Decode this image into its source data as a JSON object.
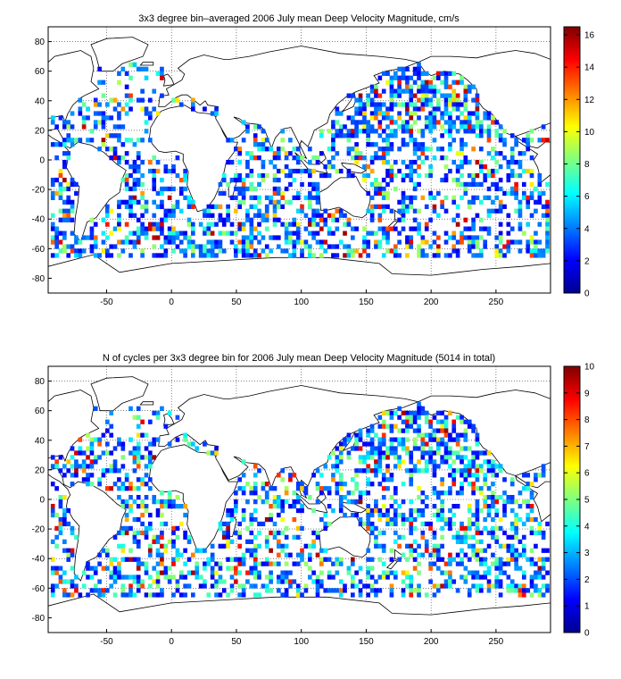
{
  "chart_data": [
    {
      "type": "heatmap",
      "title": "3x3 degree bin–averaged 2006 July mean Deep Velocity Magnitude, cm/s",
      "xlabel": "",
      "ylabel": "",
      "xlim": [
        -95,
        292
      ],
      "ylim": [
        -90,
        90
      ],
      "xticks": [
        "-50",
        "0",
        "50",
        "100",
        "150",
        "200",
        "250"
      ],
      "yticks": [
        "80",
        "60",
        "40",
        "20",
        "0",
        "-20",
        "-40",
        "-60",
        "-80"
      ],
      "grid": true,
      "colorbar": {
        "range": [
          0,
          16.5
        ],
        "ticks": [
          "0",
          "2",
          "4",
          "6",
          "8",
          "10",
          "12",
          "14",
          "16"
        ],
        "colormap": "jet"
      },
      "bin_size_deg": 3,
      "value_mix": {
        "low_fraction": 0.63,
        "mid_fraction": 0.25,
        "high_fraction": 0.12
      },
      "colors": {
        "low": "#0000d8",
        "mid": "#00e0ff",
        "high": "#a00000"
      }
    },
    {
      "type": "heatmap",
      "title": "N of cycles per 3x3 degree bin for 2006 July mean Deep Velocity Magnitude (5014 in total)",
      "xlabel": "",
      "ylabel": "",
      "xlim": [
        -95,
        292
      ],
      "ylim": [
        -90,
        90
      ],
      "xticks": [
        "-50",
        "0",
        "50",
        "100",
        "150",
        "200",
        "250"
      ],
      "yticks": [
        "80",
        "60",
        "40",
        "20",
        "0",
        "-20",
        "-40",
        "-60",
        "-80"
      ],
      "grid": true,
      "total_cycles": 5014,
      "colorbar": {
        "range": [
          0,
          10
        ],
        "ticks": [
          "0",
          "1",
          "2",
          "3",
          "4",
          "5",
          "6",
          "7",
          "8",
          "9",
          "10"
        ],
        "colormap": "jet"
      },
      "bin_size_deg": 3,
      "value_mix": {
        "low_fraction": 0.55,
        "mid_fraction": 0.33,
        "high_fraction": 0.12
      },
      "colors": {
        "low": "#0000ff",
        "mid": "#00c8ff",
        "high": "#ff2000"
      }
    }
  ]
}
